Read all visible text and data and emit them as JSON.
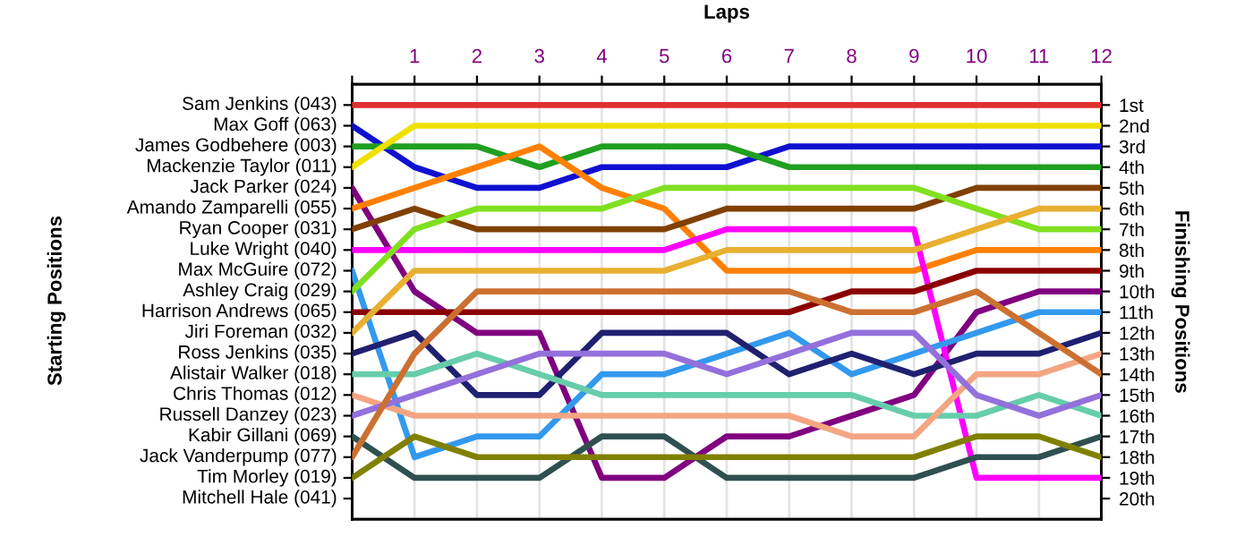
{
  "chart_data": {
    "type": "line",
    "xlabel": "Laps",
    "y2label": "Finishing Positions",
    "x": [
      0,
      1,
      2,
      3,
      4,
      5,
      6,
      7,
      8,
      9,
      10,
      11,
      12
    ],
    "xlim": [
      0,
      12
    ],
    "xticks": [
      {
        "value": 0,
        "label": null
      },
      1,
      2,
      3,
      4,
      5,
      6,
      7,
      8,
      9,
      10,
      11,
      12
    ],
    "y2lim": [
      21,
      0
    ],
    "y2ticks": [
      {
        "value": 1,
        "label": "1st"
      },
      {
        "value": 2,
        "label": "2nd"
      },
      {
        "value": 3,
        "label": "3rd"
      },
      {
        "value": 4,
        "label": "4th"
      },
      {
        "value": 5,
        "label": "5th"
      },
      {
        "value": 6,
        "label": "6th"
      },
      {
        "value": 7,
        "label": "7th"
      },
      {
        "value": 8,
        "label": "8th"
      },
      {
        "value": 9,
        "label": "9th"
      },
      {
        "value": 10,
        "label": "10th"
      },
      {
        "value": 11,
        "label": "11th"
      },
      {
        "value": 12,
        "label": "12th"
      },
      {
        "value": 13,
        "label": "13th"
      },
      {
        "value": 14,
        "label": "14th"
      },
      {
        "value": 15,
        "label": "15th"
      },
      {
        "value": 16,
        "label": "16th"
      },
      {
        "value": 17,
        "label": "17th"
      },
      {
        "value": 18,
        "label": "18th"
      },
      {
        "value": 19,
        "label": "19th"
      },
      {
        "value": 20,
        "label": "20th"
      }
    ],
    "grid": "x",
    "legend": false,
    "marker": "none",
    "line_style": "solid",
    "annotations": [
      "Starting Positions",
      "Mitchell Hale (041)"
    ],
    "series": [
      {
        "name": "Sam Jenkins (043)",
        "axis": "y2",
        "color": "#e03030",
        "values": [
          1,
          1,
          1,
          1,
          1,
          1,
          1,
          1,
          1,
          1,
          1,
          1,
          1
        ]
      },
      {
        "name": "Max Goff (063)",
        "axis": "y2",
        "color": "#1010d0",
        "values": [
          2,
          4,
          5,
          5,
          4,
          4,
          4,
          3,
          3,
          3,
          3,
          3,
          3
        ]
      },
      {
        "name": "James Godbehere (003)",
        "axis": "y2",
        "color": "#20a020",
        "values": [
          3,
          3,
          3,
          4,
          3,
          3,
          3,
          4,
          4,
          4,
          4,
          4,
          4
        ]
      },
      {
        "name": "Mackenzie Taylor (011)",
        "axis": "y2",
        "color": "#f0e000",
        "values": [
          4,
          2,
          2,
          2,
          2,
          2,
          2,
          2,
          2,
          2,
          2,
          2,
          2
        ]
      },
      {
        "name": "Jack Parker (024)",
        "axis": "y2",
        "color": "#800080",
        "values": [
          5,
          10,
          12,
          12,
          19,
          19,
          17,
          17,
          16,
          15,
          11,
          10,
          10
        ]
      },
      {
        "name": "Amando Zamparelli (055)",
        "axis": "y2",
        "color": "#ff8000",
        "values": [
          6,
          5,
          4,
          3,
          5,
          6,
          9,
          9,
          9,
          9,
          8,
          8,
          8
        ]
      },
      {
        "name": "Ryan Cooper (031)",
        "axis": "y2",
        "color": "#804000",
        "values": [
          7,
          6,
          7,
          7,
          7,
          7,
          6,
          6,
          6,
          6,
          5,
          5,
          5
        ]
      },
      {
        "name": "Luke Wright (040)",
        "axis": "y2",
        "color": "#ff00ff",
        "values": [
          8,
          8,
          8,
          8,
          8,
          8,
          7,
          7,
          7,
          7,
          19,
          19,
          19
        ]
      },
      {
        "name": "Max McGuire (072)",
        "axis": "y2",
        "color": "#3399ee",
        "values": [
          9,
          18,
          17,
          17,
          14,
          14,
          13,
          12,
          14,
          13,
          12,
          11,
          11
        ]
      },
      {
        "name": "Ashley Craig (029)",
        "axis": "y2",
        "color": "#80e020",
        "values": [
          10,
          7,
          6,
          6,
          6,
          5,
          5,
          5,
          5,
          5,
          6,
          7,
          7
        ]
      },
      {
        "name": "Harrison Andrews (065)",
        "axis": "y2",
        "color": "#8b0000",
        "values": [
          11,
          11,
          11,
          11,
          11,
          11,
          11,
          11,
          10,
          10,
          9,
          9,
          9
        ]
      },
      {
        "name": "Jiri Foreman (032)",
        "axis": "y2",
        "color": "#e8b030",
        "values": [
          12,
          9,
          9,
          9,
          9,
          9,
          8,
          8,
          8,
          8,
          7,
          6,
          6
        ]
      },
      {
        "name": "Ross Jenkins (035)",
        "axis": "y2",
        "color": "#202070",
        "values": [
          13,
          12,
          15,
          15,
          12,
          12,
          12,
          14,
          13,
          14,
          13,
          13,
          12
        ]
      },
      {
        "name": "Alistair Walker (018)",
        "axis": "y2",
        "color": "#66cdaa",
        "values": [
          14,
          14,
          13,
          14,
          15,
          15,
          15,
          15,
          15,
          16,
          16,
          15,
          16
        ]
      },
      {
        "name": "Chris Thomas (012)",
        "axis": "y2",
        "color": "#f4a582",
        "values": [
          15,
          16,
          16,
          16,
          16,
          16,
          16,
          16,
          17,
          17,
          14,
          14,
          13
        ]
      },
      {
        "name": "Russell Danzey (023)",
        "axis": "y2",
        "color": "#9370db",
        "values": [
          16,
          15,
          14,
          13,
          13,
          13,
          14,
          13,
          12,
          12,
          15,
          16,
          15
        ]
      },
      {
        "name": "Kabir Gillani (069)",
        "axis": "y2",
        "color": "#305050",
        "values": [
          17,
          19,
          19,
          19,
          17,
          17,
          19,
          19,
          19,
          19,
          18,
          18,
          17
        ]
      },
      {
        "name": "Jack Vanderpump (077)",
        "axis": "y2",
        "color": "#cc7030",
        "values": [
          18,
          13,
          10,
          10,
          10,
          10,
          10,
          10,
          11,
          11,
          10,
          12,
          14
        ]
      },
      {
        "name": "Tim Morley (019)",
        "axis": "y2",
        "color": "#808000",
        "values": [
          19,
          17,
          18,
          18,
          18,
          18,
          18,
          18,
          18,
          18,
          17,
          17,
          18
        ]
      }
    ]
  }
}
